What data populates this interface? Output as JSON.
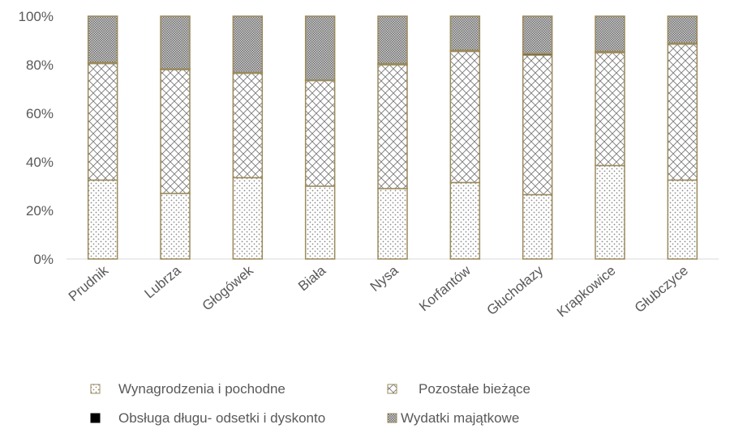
{
  "chart_data": {
    "type": "bar",
    "stacked": true,
    "percent": true,
    "categories": [
      "Prudnik",
      "Lubrza",
      "Głogówek",
      "Biała",
      "Nysa",
      "Korfantów",
      "Głuchołazy",
      "Krapkowice",
      "Głubczyce"
    ],
    "series": [
      {
        "name": "Wynagrodzenia i pochodne",
        "pattern": "dots",
        "values": [
          32.5,
          27.0,
          33.5,
          30.0,
          29.0,
          31.5,
          26.5,
          38.5,
          32.5
        ]
      },
      {
        "name": "Pozostałe bieżące",
        "pattern": "crosshatch",
        "values": [
          48.0,
          51.0,
          43.0,
          43.5,
          51.0,
          54.0,
          57.5,
          46.5,
          56.0
        ]
      },
      {
        "name": "Obsługa długu- odsetki i dyskonto",
        "pattern": "solid",
        "values": [
          0.5,
          0.3,
          0.3,
          0.2,
          0.5,
          0.5,
          0.6,
          0.5,
          0.4
        ]
      },
      {
        "name": "Wydatki majątkowe",
        "pattern": "fine-grid",
        "values": [
          19.0,
          21.7,
          23.2,
          26.3,
          19.5,
          14.0,
          15.4,
          14.5,
          11.1
        ]
      }
    ],
    "yticks": [
      "0%",
      "20%",
      "40%",
      "60%",
      "80%",
      "100%"
    ],
    "ylim": [
      0,
      100
    ],
    "grid": false,
    "legend": "bottom",
    "colors": {
      "border": "#9b8a5a",
      "text": "#595959",
      "axis": "#d9d9d9"
    }
  }
}
